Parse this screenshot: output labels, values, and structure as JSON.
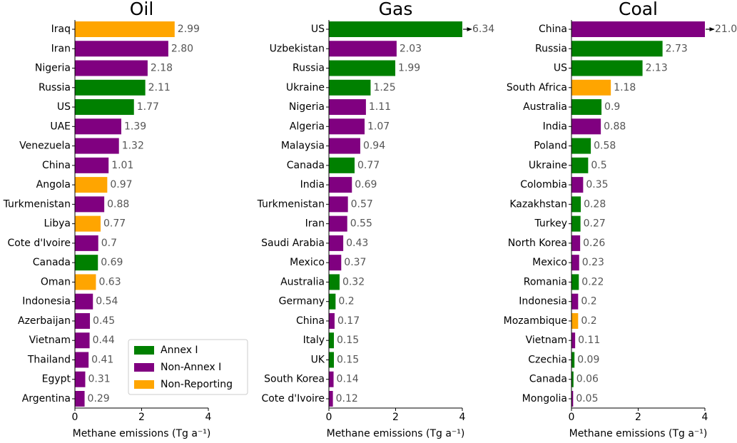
{
  "chart_data": [
    {
      "type": "bar",
      "orientation": "horizontal",
      "title": "Oil",
      "categories": [
        "Iraq",
        "Iran",
        "Nigeria",
        "Russia",
        "US",
        "UAE",
        "Venezuela",
        "China",
        "Angola",
        "Turkmenistan",
        "Libya",
        "Cote d'Ivoire",
        "Canada",
        "Oman",
        "Indonesia",
        "Azerbaijan",
        "Vietnam",
        "Thailand",
        "Egypt",
        "Argentina"
      ],
      "values": [
        2.99,
        2.8,
        2.18,
        2.11,
        1.77,
        1.39,
        1.32,
        1.01,
        0.97,
        0.88,
        0.77,
        0.7,
        0.69,
        0.63,
        0.54,
        0.45,
        0.44,
        0.41,
        0.31,
        0.29
      ],
      "value_labels": [
        "2.99",
        "2.80",
        "2.18",
        "2.11",
        "1.77",
        "1.39",
        "1.32",
        "1.01",
        "0.97",
        "0.88",
        "0.77",
        "0.7",
        "0.69",
        "0.63",
        "0.54",
        "0.45",
        "0.44",
        "0.41",
        "0.31",
        "0.29"
      ],
      "colors": [
        "#ffa500",
        "#800080",
        "#800080",
        "#008000",
        "#008000",
        "#800080",
        "#800080",
        "#800080",
        "#ffa500",
        "#800080",
        "#ffa500",
        "#800080",
        "#008000",
        "#ffa500",
        "#800080",
        "#800080",
        "#800080",
        "#800080",
        "#800080",
        "#800080"
      ],
      "xlim": [
        0,
        4
      ],
      "xticks": [
        0,
        2,
        4
      ],
      "xlabel": "Methane emissions (Tg a⁻¹)",
      "legend_position": "lower right",
      "legend": [
        {
          "name": "Annex I",
          "color": "#008000"
        },
        {
          "name": "Non-Annex I",
          "color": "#800080"
        },
        {
          "name": "Non-Reporting",
          "color": "#ffa500"
        }
      ]
    },
    {
      "type": "bar",
      "orientation": "horizontal",
      "title": "Gas",
      "categories": [
        "US",
        "Uzbekistan",
        "Russia",
        "Ukraine",
        "Nigeria",
        "Algeria",
        "Malaysia",
        "Canada",
        "India",
        "Turkmenistan",
        "Iran",
        "Saudi Arabia",
        "Mexico",
        "Australia",
        "Germany",
        "China",
        "Italy",
        "UK",
        "South Korea",
        "Cote d'Ivoire"
      ],
      "values": [
        6.34,
        2.03,
        1.99,
        1.25,
        1.11,
        1.07,
        0.94,
        0.77,
        0.69,
        0.57,
        0.55,
        0.43,
        0.37,
        0.32,
        0.2,
        0.17,
        0.15,
        0.15,
        0.14,
        0.12
      ],
      "value_labels": [
        "6.34",
        "2.03",
        "1.99",
        "1.25",
        "1.11",
        "1.07",
        "0.94",
        "0.77",
        "0.69",
        "0.57",
        "0.55",
        "0.43",
        "0.37",
        "0.32",
        "0.2",
        "0.17",
        "0.15",
        "0.15",
        "0.14",
        "0.12"
      ],
      "colors": [
        "#008000",
        "#800080",
        "#008000",
        "#008000",
        "#800080",
        "#800080",
        "#800080",
        "#008000",
        "#800080",
        "#800080",
        "#800080",
        "#800080",
        "#800080",
        "#008000",
        "#008000",
        "#800080",
        "#008000",
        "#008000",
        "#800080",
        "#800080"
      ],
      "xlim": [
        0,
        4
      ],
      "xticks": [
        0,
        2,
        4
      ],
      "xlabel": "Methane emissions (Tg a⁻¹)"
    },
    {
      "type": "bar",
      "orientation": "horizontal",
      "title": "Coal",
      "categories": [
        "China",
        "Russia",
        "US",
        "South Africa",
        "Australia",
        "India",
        "Poland",
        "Ukraine",
        "Colombia",
        "Kazakhstan",
        "Turkey",
        "North Korea",
        "Mexico",
        "Romania",
        "Indonesia",
        "Mozambique",
        "Vietnam",
        "Czechia",
        "Canada",
        "Mongolia"
      ],
      "values": [
        21.0,
        2.73,
        2.13,
        1.18,
        0.9,
        0.88,
        0.58,
        0.5,
        0.35,
        0.28,
        0.27,
        0.26,
        0.23,
        0.22,
        0.2,
        0.2,
        0.11,
        0.09,
        0.06,
        0.05
      ],
      "value_labels": [
        "21.0",
        "2.73",
        "2.13",
        "1.18",
        "0.9",
        "0.88",
        "0.58",
        "0.5",
        "0.35",
        "0.28",
        "0.27",
        "0.26",
        "0.23",
        "0.22",
        "0.2",
        "0.2",
        "0.11",
        "0.09",
        "0.06",
        "0.05"
      ],
      "colors": [
        "#800080",
        "#008000",
        "#008000",
        "#ffa500",
        "#008000",
        "#800080",
        "#008000",
        "#008000",
        "#800080",
        "#008000",
        "#008000",
        "#800080",
        "#800080",
        "#008000",
        "#800080",
        "#ffa500",
        "#800080",
        "#008000",
        "#008000",
        "#800080"
      ],
      "xlim": [
        0,
        4
      ],
      "xticks": [
        0,
        2,
        4
      ],
      "xlabel": "Methane emissions (Tg a⁻¹)"
    }
  ]
}
